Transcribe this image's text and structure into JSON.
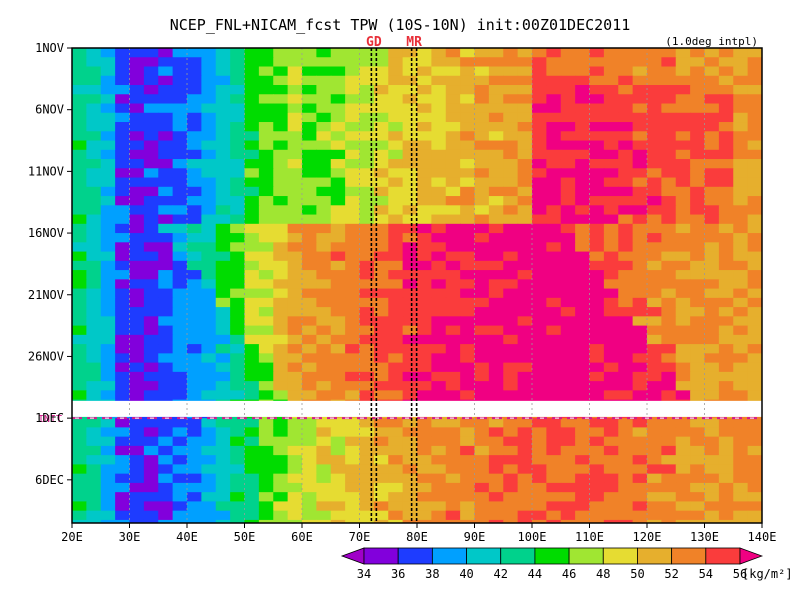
{
  "chart_data": {
    "type": "heatmap",
    "title": "NCEP_FNL+NICAM_fcst TPW (10S-10N) init:00Z01DEC2011",
    "subtitle": "(1.0deg intpl)",
    "x_axis": {
      "ticks": [
        "20E",
        "30E",
        "40E",
        "50E",
        "60E",
        "70E",
        "80E",
        "90E",
        "100E",
        "110E",
        "120E",
        "130E",
        "140E"
      ],
      "range": [
        20,
        140
      ]
    },
    "y_axis": {
      "ticks": [
        "1NOV",
        "6NOV",
        "11NOV",
        "16NOV",
        "21NOV",
        "26NOV",
        "1DEC",
        "6DEC"
      ],
      "range_days": "1NOV to 9DEC"
    },
    "markers": [
      {
        "label": "GD",
        "lon": 72.5,
        "color": "#e8303a"
      },
      {
        "label": "MR",
        "lon": 79.5,
        "color": "#e8303a"
      }
    ],
    "init_label": "INIT",
    "init_color": "#d41a8c",
    "colorbar": {
      "levels": [
        34,
        36,
        38,
        40,
        42,
        44,
        46,
        48,
        50,
        52,
        54,
        56
      ],
      "colors": [
        "#a000c8",
        "#8200dc",
        "#1e3cff",
        "#00a0ff",
        "#00c8c8",
        "#00d28c",
        "#00dc00",
        "#a0e632",
        "#e6dc32",
        "#e6af2d",
        "#f08228",
        "#fa3c3c",
        "#f00082"
      ],
      "unit": "[kg/m²]"
    },
    "zonal_profile": [
      {
        "lon": 20,
        "value": 44
      },
      {
        "lon": 25,
        "value": 41
      },
      {
        "lon": 30,
        "value": 36
      },
      {
        "lon": 35,
        "value": 37
      },
      {
        "lon": 40,
        "value": 38
      },
      {
        "lon": 45,
        "value": 40
      },
      {
        "lon": 50,
        "value": 44
      },
      {
        "lon": 55,
        "value": 46
      },
      {
        "lon": 60,
        "value": 48
      },
      {
        "lon": 70,
        "value": 50
      },
      {
        "lon": 80,
        "value": 52
      },
      {
        "lon": 90,
        "value": 53
      },
      {
        "lon": 100,
        "value": 54
      },
      {
        "lon": 110,
        "value": 54
      },
      {
        "lon": 120,
        "value": 53
      },
      {
        "lon": 130,
        "value": 52
      },
      {
        "lon": 140,
        "value": 52
      }
    ]
  }
}
